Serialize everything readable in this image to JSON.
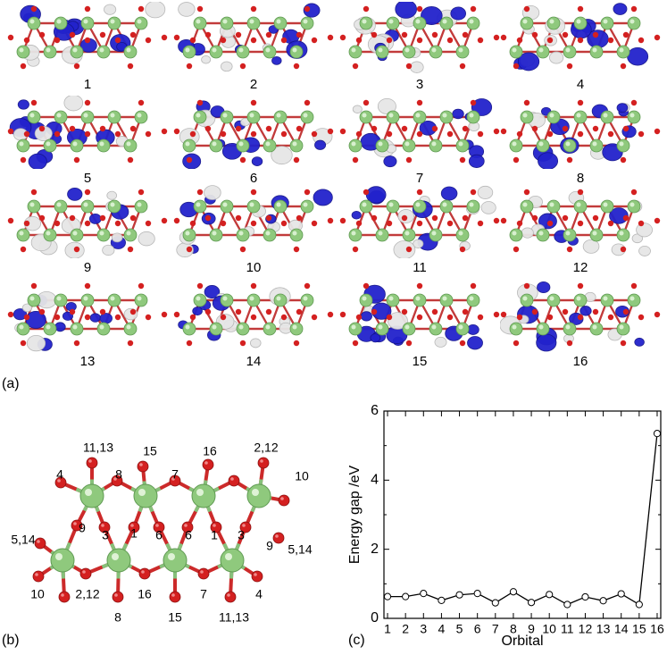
{
  "panel_a": {
    "label": "(a)",
    "orbitals": [
      "1",
      "2",
      "3",
      "4",
      "5",
      "6",
      "7",
      "8",
      "9",
      "10",
      "11",
      "12",
      "13",
      "14",
      "15",
      "16"
    ]
  },
  "panel_b": {
    "label": "(b)",
    "atom_labels": [
      {
        "text": "11,13"
      },
      {
        "text": "15"
      },
      {
        "text": "16"
      },
      {
        "text": "2,12"
      },
      {
        "text": "4"
      },
      {
        "text": "8"
      },
      {
        "text": "7"
      },
      {
        "text": "10"
      },
      {
        "text": "9"
      },
      {
        "text": "3"
      },
      {
        "text": "1"
      },
      {
        "text": "6"
      },
      {
        "text": "6"
      },
      {
        "text": "1"
      },
      {
        "text": "3"
      },
      {
        "text": "9"
      },
      {
        "text": "5,14"
      },
      {
        "text": "5,14"
      },
      {
        "text": "10"
      },
      {
        "text": "2,12"
      },
      {
        "text": "16"
      },
      {
        "text": "7"
      },
      {
        "text": "15"
      },
      {
        "text": "8"
      },
      {
        "text": "11,13"
      },
      {
        "text": "4"
      }
    ]
  },
  "panel_c": {
    "label": "(c)",
    "chart_data": {
      "type": "line",
      "xlabel": "Orbital",
      "ylabel": "Energy gap /eV",
      "x": [
        1,
        2,
        3,
        4,
        5,
        6,
        7,
        8,
        9,
        10,
        11,
        12,
        13,
        14,
        15,
        16
      ],
      "values": [
        0.63,
        0.63,
        0.72,
        0.52,
        0.68,
        0.72,
        0.45,
        0.77,
        0.46,
        0.69,
        0.4,
        0.62,
        0.51,
        0.71,
        0.4,
        5.35
      ],
      "xticks": [
        "1",
        "2",
        "3",
        "4",
        "5",
        "6",
        "7",
        "8",
        "9",
        "10",
        "11",
        "12",
        "13",
        "14",
        "15",
        "16"
      ],
      "yticks": [
        "0",
        "2",
        "4",
        "6"
      ],
      "ylim": [
        0,
        6
      ],
      "xlim": [
        1,
        16
      ],
      "marker": "open-circle",
      "line_color": "#000000"
    }
  }
}
